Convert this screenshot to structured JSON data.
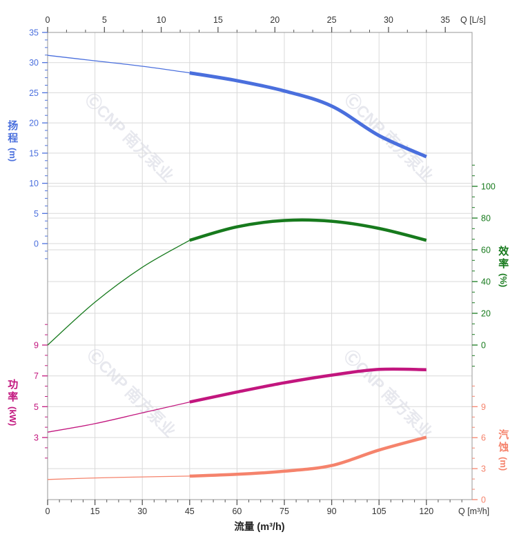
{
  "watermark": {
    "text": "ⒸCNP 南方泵业"
  },
  "colors": {
    "head": "#4a6fdd",
    "efficiency": "#177a1d",
    "power": "#c2167e",
    "npsh": "#f5836c",
    "tick_text": "#333333",
    "axis_tick": "#555555",
    "grid": "#d9d9d9",
    "border": "#a8a8a8",
    "watermark": "#e7e8ee",
    "flow_title_text": "#222222"
  },
  "axes": {
    "top": {
      "label": "Q [L/s]",
      "ticks": [
        0,
        5,
        10,
        15,
        20,
        25,
        30,
        35
      ]
    },
    "bottom": {
      "label": "Q [m³/h]",
      "title": "流量 (m³/h)",
      "ticks": [
        0,
        15,
        30,
        45,
        60,
        75,
        90,
        105,
        120
      ]
    },
    "head": {
      "title": "扬程",
      "unit": "(m)",
      "ticks": [
        35,
        30,
        25,
        20,
        15,
        10,
        5,
        0
      ],
      "range": [
        0,
        35
      ]
    },
    "efficiency": {
      "title": "效率",
      "unit": "(%)",
      "ticks": [
        100,
        80,
        60,
        40,
        20,
        0
      ],
      "range": [
        0,
        100
      ]
    },
    "power": {
      "title": "功率",
      "unit": "(kW)",
      "ticks": [
        9,
        7,
        5,
        3
      ],
      "range": [
        3,
        9
      ]
    },
    "npsh": {
      "title": "汽蚀",
      "unit": "(m)",
      "ticks": [
        9,
        6,
        3,
        0
      ],
      "range": [
        0,
        9
      ]
    }
  },
  "chart_data": {
    "type": "line",
    "title": "",
    "xlabel": "流量 (m³/h)",
    "x_top_label": "Q [L/s]",
    "x_units": {
      "bottom": "m³/h",
      "top": "L/s"
    },
    "x": [
      0,
      15,
      30,
      45,
      60,
      75,
      90,
      105,
      120
    ],
    "xlim": [
      0,
      120
    ],
    "duty_split_x": 45,
    "grid": true,
    "series": [
      {
        "name": "head",
        "label": "扬程",
        "unit": "m",
        "color": "#4a6fdd",
        "values": [
          31.2,
          30.3,
          29.4,
          28.3,
          27.0,
          25.3,
          22.8,
          17.9,
          14.4
        ]
      },
      {
        "name": "efficiency",
        "label": "效率",
        "unit": "%",
        "color": "#177a1d",
        "values": [
          0,
          27,
          49,
          66,
          74.5,
          78.5,
          78,
          73.5,
          66
        ]
      },
      {
        "name": "power",
        "label": "功率",
        "unit": "kW",
        "color": "#c2167e",
        "values": [
          3.35,
          3.9,
          4.6,
          5.3,
          5.95,
          6.55,
          7.05,
          7.42,
          7.4
        ]
      },
      {
        "name": "npsh",
        "label": "汽蚀",
        "unit": "m",
        "color": "#f5836c",
        "values": [
          1.95,
          2.1,
          2.2,
          2.28,
          2.45,
          2.75,
          3.3,
          4.8,
          6.05
        ]
      }
    ]
  }
}
